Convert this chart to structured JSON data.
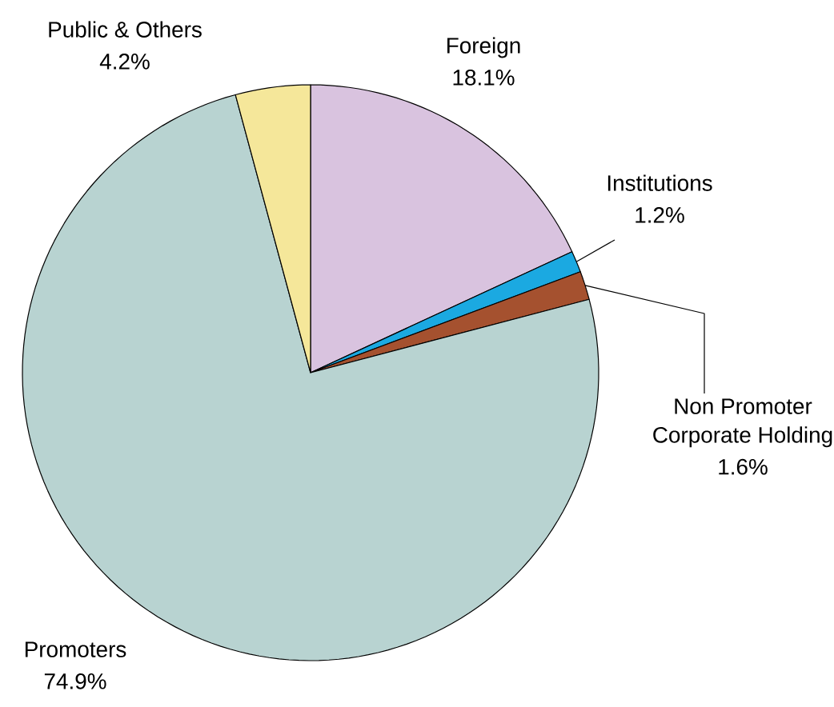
{
  "chart_data": {
    "type": "pie",
    "categories": [
      "Foreign",
      "Institutions",
      "Non Promoter Corporate Holding",
      "Promoters",
      "Public & Others"
    ],
    "values": [
      18.1,
      1.2,
      1.6,
      74.9,
      4.2
    ],
    "colors": [
      "#d9c3df",
      "#1ba9e1",
      "#a5512f",
      "#b8d3d1",
      "#f5e79a"
    ],
    "value_labels": [
      "18.1%",
      "1.2%",
      "1.6%",
      "74.9%",
      "4.2%"
    ]
  }
}
